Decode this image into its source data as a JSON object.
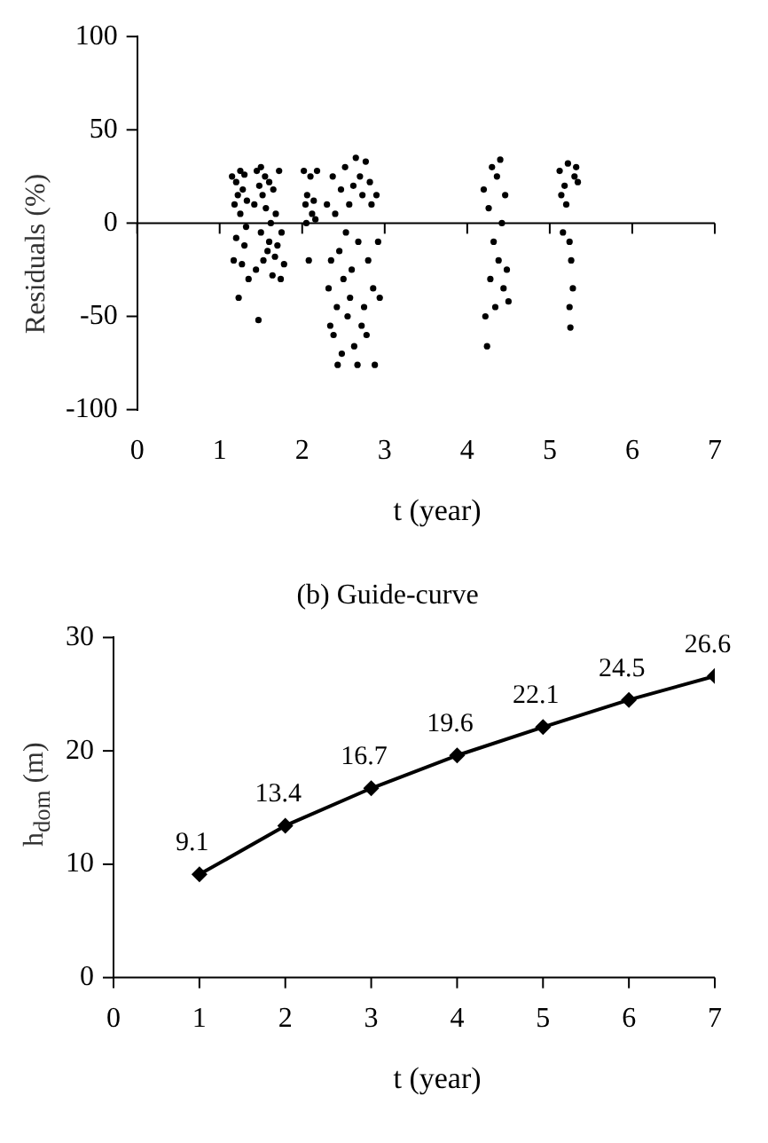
{
  "chart_data": [
    {
      "type": "scatter",
      "xlabel": "t (year)",
      "ylabel": "Residuals (%)",
      "xlim": [
        0,
        7
      ],
      "xticks": [
        0,
        1,
        2,
        3,
        4,
        5,
        6,
        7
      ],
      "ylim": [
        -100,
        100
      ],
      "yticks": [
        -100,
        -50,
        0,
        50,
        100
      ],
      "grid": false,
      "legend": false,
      "marker": "circle",
      "ref_lines": [
        {
          "axis": "y",
          "value": 0
        }
      ],
      "series": [
        {
          "color": "#000000",
          "x": [
            1.15,
            1.17,
            1.18,
            1.2,
            1.2,
            1.22,
            1.23,
            1.25,
            1.25,
            1.27,
            1.28,
            1.3,
            1.3,
            1.32,
            1.33,
            1.35,
            1.42,
            1.44,
            1.45,
            1.47,
            1.48,
            1.5,
            1.5,
            1.52,
            1.53,
            1.55,
            1.56,
            1.58,
            1.6,
            1.6,
            1.62,
            1.64,
            1.65,
            1.67,
            1.68,
            1.7,
            1.72,
            1.74,
            1.75,
            1.78,
            2.02,
            2.04,
            2.06,
            2.08,
            2.1,
            2.12,
            2.14,
            2.16,
            2.18,
            2.05,
            2.3,
            2.32,
            2.34,
            2.35,
            2.37,
            2.38,
            2.4,
            2.42,
            2.43,
            2.45,
            2.47,
            2.48,
            2.5,
            2.52,
            2.53,
            2.55,
            2.57,
            2.58,
            2.6,
            2.62,
            2.63,
            2.65,
            2.67,
            2.68,
            2.7,
            2.72,
            2.73,
            2.75,
            2.77,
            2.78,
            2.8,
            2.82,
            2.84,
            2.86,
            2.88,
            2.9,
            2.92,
            2.94,
            4.2,
            4.22,
            4.24,
            4.26,
            4.28,
            4.3,
            4.32,
            4.34,
            4.36,
            4.38,
            4.4,
            4.42,
            4.44,
            4.46,
            4.48,
            4.5,
            5.12,
            5.14,
            5.16,
            5.18,
            5.2,
            5.22,
            5.24,
            5.26,
            5.28,
            5.3,
            5.32,
            5.34,
            5.25,
            5.24
          ],
          "values": [
            25,
            -20,
            10,
            22,
            -8,
            15,
            -40,
            28,
            5,
            -22,
            18,
            -12,
            26,
            -2,
            12,
            -30,
            10,
            -25,
            28,
            -52,
            20,
            30,
            -5,
            15,
            -20,
            25,
            8,
            -15,
            22,
            -10,
            0,
            -28,
            18,
            -18,
            5,
            -12,
            28,
            -30,
            -5,
            -22,
            28,
            10,
            15,
            -20,
            25,
            5,
            12,
            2,
            28,
            0,
            10,
            -35,
            -55,
            -20,
            25,
            -60,
            5,
            -45,
            -76,
            -15,
            18,
            -70,
            -30,
            30,
            -5,
            -50,
            10,
            -40,
            -25,
            20,
            -66,
            35,
            -76,
            -10,
            25,
            -55,
            15,
            -45,
            33,
            -60,
            -20,
            22,
            10,
            -35,
            -76,
            15,
            -10,
            -40,
            18,
            -50,
            -66,
            8,
            -30,
            30,
            -10,
            -45,
            25,
            -20,
            34,
            0,
            -35,
            15,
            -25,
            -42,
            28,
            15,
            -5,
            20,
            10,
            32,
            -10,
            -20,
            -35,
            25,
            30,
            22,
            -56,
            -45
          ]
        }
      ]
    },
    {
      "type": "line",
      "title": "(b) Guide-curve",
      "xlabel": "t (year)",
      "ylabel": "h$_{dom}$ (m)",
      "xlim": [
        0,
        7
      ],
      "xticks": [
        0,
        1,
        2,
        3,
        4,
        5,
        6,
        7
      ],
      "ylim": [
        0,
        30
      ],
      "yticks": [
        0,
        10,
        20,
        30
      ],
      "grid": false,
      "legend": false,
      "marker": "diamond",
      "line_style": "solid",
      "data_labels": true,
      "series": [
        {
          "color": "#000000",
          "x": [
            1,
            2,
            3,
            4,
            5,
            6,
            7
          ],
          "values": [
            9.1,
            13.4,
            16.7,
            19.6,
            22.1,
            24.5,
            26.6
          ]
        }
      ]
    }
  ]
}
